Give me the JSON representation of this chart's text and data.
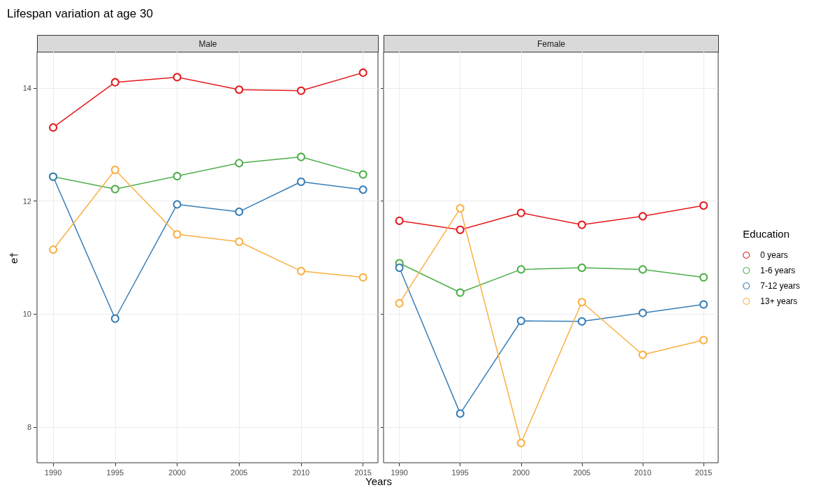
{
  "chart_data": [
    {
      "type": "line",
      "title": "Male",
      "annotations": [
        "Lifespan variation at age 30"
      ],
      "xlabel": "Years",
      "ylabel": "e†",
      "x": [
        1990,
        1995,
        2000,
        2005,
        2010,
        2015
      ],
      "xlim": [
        1988.7,
        2016.2
      ],
      "xticks": [
        1990,
        1995,
        2000,
        2005,
        2010,
        2015
      ],
      "ylim": [
        7.37,
        14.64
      ],
      "yticks": [
        8,
        10,
        12,
        14
      ],
      "grid": true,
      "marker": "circle",
      "legend": false,
      "series": [
        {
          "color": "#e41a1c",
          "values": [
            13.3,
            14.1,
            14.19,
            13.97,
            13.95,
            14.27
          ]
        },
        {
          "color": "#4daf4a",
          "values": [
            12.43,
            12.21,
            12.44,
            12.67,
            12.78,
            12.47
          ]
        },
        {
          "color": "#377eb8",
          "values": [
            12.43,
            9.92,
            11.94,
            11.81,
            12.34,
            12.2
          ]
        },
        {
          "color": "#f9b043",
          "values": [
            11.14,
            12.55,
            11.41,
            11.28,
            10.76,
            10.65
          ]
        }
      ]
    },
    {
      "type": "line",
      "title": "Female",
      "x": [
        1990,
        1995,
        2000,
        2005,
        2010,
        2015
      ],
      "xlim": [
        1988.7,
        2016.2
      ],
      "xticks": [
        1990,
        1995,
        2000,
        2005,
        2010,
        2015
      ],
      "ylim": [
        7.37,
        14.64
      ],
      "yticks": [
        8,
        10,
        12,
        14
      ],
      "tick_labels": "x",
      "grid": true,
      "marker": "circle",
      "legend": "right",
      "legend_title": "Education",
      "series": [
        {
          "name": "0 years",
          "color": "#e41a1c",
          "values": [
            11.65,
            11.49,
            11.79,
            11.58,
            11.73,
            11.92
          ]
        },
        {
          "name": "1-6 years",
          "color": "#4daf4a",
          "values": [
            10.9,
            10.38,
            10.79,
            10.82,
            10.79,
            10.65
          ]
        },
        {
          "name": "7-12 years",
          "color": "#377eb8",
          "values": [
            10.82,
            8.24,
            9.88,
            9.87,
            10.02,
            10.17
          ]
        },
        {
          "name": "13+ years",
          "color": "#f9b043",
          "values": [
            10.19,
            11.87,
            7.72,
            10.21,
            9.28,
            9.54
          ]
        }
      ]
    }
  ]
}
